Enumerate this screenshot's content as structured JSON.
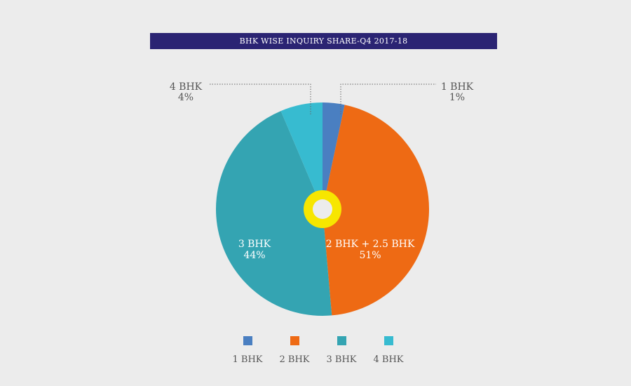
{
  "chart_data": {
    "type": "pie",
    "title": "BHK WISE INQUIRY SHARE-Q4 2017-18",
    "categories": [
      "1 BHK",
      "2 BHK + 2.5 BHK",
      "3 BHK",
      "4 BHK"
    ],
    "values": [
      1,
      51,
      44,
      4
    ],
    "value_labels": [
      "1%",
      "51%",
      "44%",
      "4%"
    ],
    "colors": [
      "#4a7fc1",
      "#ee6a14",
      "#34a4b2",
      "#37bbd0"
    ],
    "legend": {
      "placement": "bottom",
      "entries": [
        {
          "label": "1 BHK",
          "color": "#4a7fc1"
        },
        {
          "label": "2 BHK",
          "color": "#ee6a14"
        },
        {
          "label": "3 BHK",
          "color": "#34a4b2"
        },
        {
          "label": "4 BHK",
          "color": "#37bbd0"
        }
      ]
    },
    "center_ring_color": "#f7e600"
  }
}
